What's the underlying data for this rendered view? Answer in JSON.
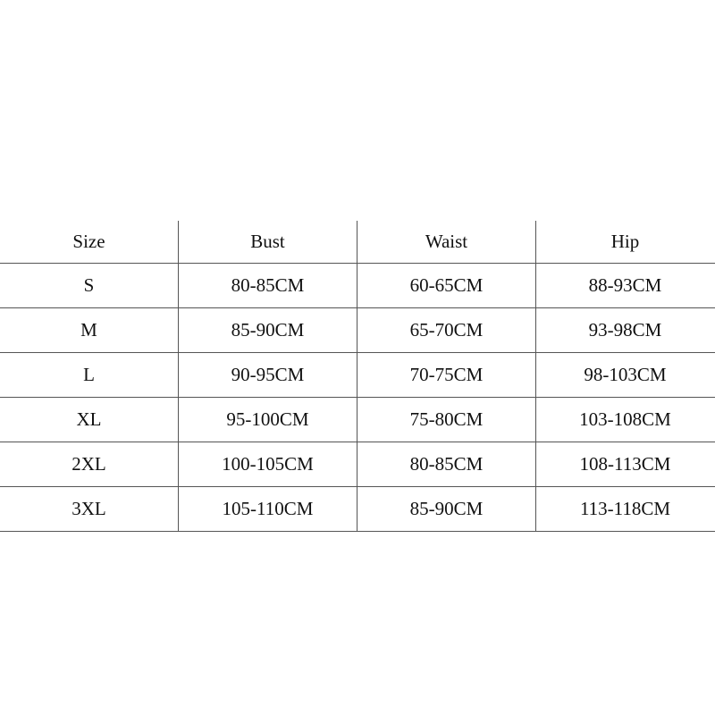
{
  "headers": [
    "Size",
    "Bust",
    "Waist",
    "Hip"
  ],
  "rows": [
    [
      "S",
      "80-85CM",
      "60-65CM",
      "88-93CM"
    ],
    [
      "M",
      "85-90CM",
      "65-70CM",
      "93-98CM"
    ],
    [
      "L",
      "90-95CM",
      "70-75CM",
      "98-103CM"
    ],
    [
      "XL",
      "95-100CM",
      "75-80CM",
      "103-108CM"
    ],
    [
      "2XL",
      "100-105CM",
      "80-85CM",
      "108-113CM"
    ],
    [
      "3XL",
      "105-110CM",
      "85-90CM",
      "113-118CM"
    ]
  ]
}
